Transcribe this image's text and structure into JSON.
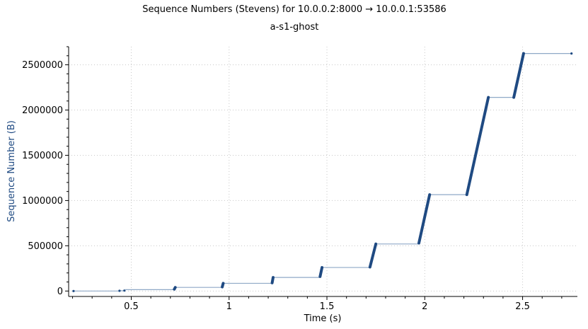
{
  "chart_data": {
    "type": "line",
    "title": "Sequence Numbers (Stevens) for 10.0.0.2:8000 → 10.0.0.1:53586",
    "subtitle": "a-s1-ghost",
    "xlabel": "Time (s)",
    "ylabel": "Sequence Number (B)",
    "xlim": [
      0.18,
      2.78
    ],
    "ylim": [
      -60000,
      2700000
    ],
    "xticks": [
      0.5,
      1,
      1.5,
      2,
      2.5
    ],
    "xtick_labels": [
      "0.5",
      "1",
      "1.5",
      "2",
      "2.5"
    ],
    "yticks": [
      0,
      500000,
      1000000,
      1500000,
      2000000,
      2500000
    ],
    "ytick_labels": [
      "0",
      "500000",
      "1000000",
      "1500000",
      "2000000",
      "2500000"
    ],
    "grid": true,
    "colors": {
      "line": "#8fa9c7",
      "points": "#1f4a82",
      "ylabel": "#1f4a82"
    },
    "steps": [
      {
        "t0": 0.205,
        "t1": 0.205,
        "y0": 0,
        "y1": 0
      },
      {
        "t0": 0.44,
        "t1": 0.44,
        "y0": 3000,
        "y1": 3000
      },
      {
        "t0": 0.465,
        "t1": 0.47,
        "y0": 5000,
        "y1": 15000
      },
      {
        "t0": 0.72,
        "t1": 0.725,
        "y0": 20000,
        "y1": 40000
      },
      {
        "t0": 0.965,
        "t1": 0.97,
        "y0": 45000,
        "y1": 85000
      },
      {
        "t0": 1.22,
        "t1": 1.225,
        "y0": 90000,
        "y1": 150000
      },
      {
        "t0": 1.465,
        "t1": 1.475,
        "y0": 160000,
        "y1": 260000
      },
      {
        "t0": 1.72,
        "t1": 1.75,
        "y0": 265000,
        "y1": 520000
      },
      {
        "t0": 1.97,
        "t1": 2.025,
        "y0": 530000,
        "y1": 1065000
      },
      {
        "t0": 2.215,
        "t1": 2.325,
        "y0": 1065000,
        "y1": 2140000
      },
      {
        "t0": 2.455,
        "t1": 2.505,
        "y0": 2140000,
        "y1": 2625000
      },
      {
        "t0": 2.75,
        "t1": 2.75,
        "y0": 2625000,
        "y1": 2625000
      }
    ]
  }
}
